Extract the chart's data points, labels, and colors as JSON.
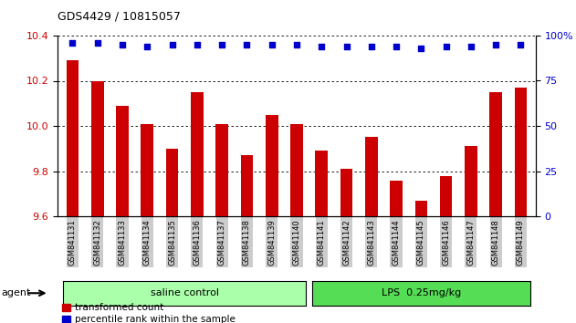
{
  "title": "GDS4429 / 10815057",
  "samples": [
    "GSM841131",
    "GSM841132",
    "GSM841133",
    "GSM841134",
    "GSM841135",
    "GSM841136",
    "GSM841137",
    "GSM841138",
    "GSM841139",
    "GSM841140",
    "GSM841141",
    "GSM841142",
    "GSM841143",
    "GSM841144",
    "GSM841145",
    "GSM841146",
    "GSM841147",
    "GSM841148",
    "GSM841149"
  ],
  "bar_values": [
    10.29,
    10.2,
    10.09,
    10.01,
    9.9,
    10.15,
    10.01,
    9.87,
    10.05,
    10.01,
    9.89,
    9.81,
    9.95,
    9.76,
    9.67,
    9.78,
    9.91,
    10.15,
    10.17
  ],
  "percentile_values": [
    96,
    96,
    95,
    94,
    95,
    95,
    95,
    95,
    95,
    95,
    94,
    94,
    94,
    94,
    93,
    94,
    94,
    95,
    95
  ],
  "bar_color": "#cc0000",
  "percentile_color": "#0000cc",
  "ylim_left": [
    9.6,
    10.4
  ],
  "ylim_right": [
    0,
    100
  ],
  "yticks_left": [
    9.6,
    9.8,
    10.0,
    10.2,
    10.4
  ],
  "yticks_right": [
    0,
    25,
    50,
    75,
    100
  ],
  "group1_label": "saline control",
  "group2_label": "LPS  0.25mg/kg",
  "group1_count": 10,
  "group2_count": 9,
  "agent_label": "agent",
  "group1_bg": "#aaffaa",
  "group2_bg": "#55dd55",
  "legend_bar_label": "transformed count",
  "legend_pct_label": "percentile rank within the sample",
  "grid_color": "#000000",
  "bottom_bar_bg": "#cccccc",
  "bar_width": 0.5
}
